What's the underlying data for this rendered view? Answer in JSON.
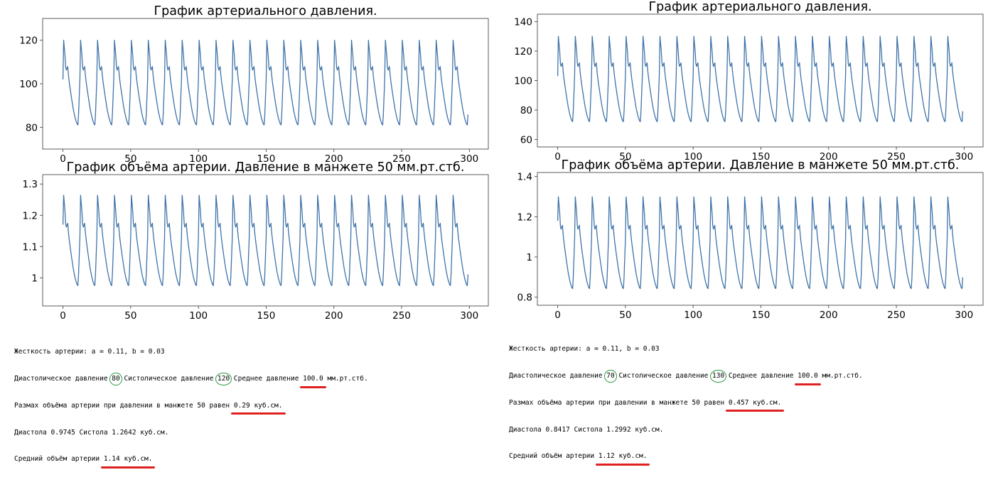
{
  "panels": [
    {
      "id": "left",
      "charts": [
        {
          "title": "График артериального давления.",
          "ylim": [
            70,
            130
          ],
          "yticks": [
            80,
            100,
            120
          ],
          "xlim": [
            -15,
            314
          ],
          "xticks": [
            0,
            50,
            100,
            150,
            200,
            250,
            300
          ],
          "diastolic": 81,
          "systolic": 120,
          "start": 102
        },
        {
          "title": "График объёма артерии. Давление в манжете 50 мм.рт.стб.",
          "ylim": [
            0.91,
            1.33
          ],
          "yticks": [
            1.0,
            1.1,
            1.2,
            1.3
          ],
          "xlim": [
            -15,
            314
          ],
          "xticks": [
            0,
            50,
            100,
            150,
            200,
            250,
            300
          ],
          "diastolic": 0.9745,
          "systolic": 1.2642,
          "start": 1.17
        }
      ],
      "console": {
        "line1": "Жесткость артерии: a = 0.11, b = 0.03",
        "line2": {
          "pre": "Диастолическое давление ",
          "dia": "80",
          "mid": " Систолическое давление ",
          "sys": "120",
          "mid2": " Среднее давление ",
          "mean": "100.0",
          "post": " мм.рт.стб."
        },
        "line3": {
          "pre": "Размах объёма артерии при давлении в манжете 50 равен ",
          "val": "0.29 куб.см."
        },
        "line4": "Диастола 0.9745 Систола 1.2642 куб.см.",
        "line5": {
          "pre": "Средний объём артерии ",
          "val": "1.14 куб.см."
        }
      }
    },
    {
      "id": "right",
      "charts": [
        {
          "title": "График артериального давления.",
          "ylim": [
            55,
            145
          ],
          "yticks": [
            60,
            80,
            100,
            120,
            140
          ],
          "xlim": [
            -15,
            314
          ],
          "xticks": [
            0,
            50,
            100,
            150,
            200,
            250,
            300
          ],
          "diastolic": 72,
          "systolic": 130,
          "start": 103
        },
        {
          "title": "График объёма артерии. Давление в манжете 50 мм.рт.стб.",
          "ylim": [
            0.76,
            1.42
          ],
          "yticks": [
            0.8,
            1.0,
            1.2,
            1.4
          ],
          "xlim": [
            -15,
            314
          ],
          "xticks": [
            0,
            50,
            100,
            150,
            200,
            250,
            300
          ],
          "diastolic": 0.8417,
          "systolic": 1.2992,
          "start": 1.18
        }
      ],
      "console": {
        "line1": "Жесткость артерии: a = 0.11, b = 0.03",
        "line2": {
          "pre": "Диастолическое давление ",
          "dia": "70",
          "mid": " Систолическое давление ",
          "sys": "130",
          "mid2": " Среднее давление ",
          "mean": "100.0",
          "post": " мм.рт.стб."
        },
        "line3": {
          "pre": "Размах объёма артерии при давлении в манжете 50 равен ",
          "val": "0.457 куб.см."
        },
        "line4": "Диастола 0.8417 Систола 1.2992 куб.см.",
        "line5": {
          "pre": "Средний объём артерии ",
          "val": "1.12 куб.см."
        }
      }
    }
  ],
  "chart_data": [
    {
      "type": "line",
      "title": "График артериального давления.",
      "x": [
        0,
        299
      ],
      "xlim": [
        -15,
        314
      ],
      "ylim": [
        70,
        130
      ],
      "series": [
        {
          "period": 12.5,
          "min": 81,
          "max": 120,
          "first": 102,
          "last": 81
        }
      ],
      "line_color": "#3f73a8"
    },
    {
      "type": "line",
      "title": "График объёма артерии. Давление в манжете 50 мм.рт.стб.",
      "x": [
        0,
        299
      ],
      "xlim": [
        -15,
        314
      ],
      "ylim": [
        0.91,
        1.33
      ],
      "series": [
        {
          "period": 12.5,
          "min": 0.9745,
          "max": 1.2642,
          "first": 1.17,
          "last": 0.975
        }
      ],
      "line_color": "#3f73a8"
    },
    {
      "type": "line",
      "title": "График артериального давления.",
      "x": [
        0,
        299
      ],
      "xlim": [
        -15,
        314
      ],
      "ylim": [
        55,
        145
      ],
      "series": [
        {
          "period": 12.5,
          "min": 72,
          "max": 130,
          "first": 103,
          "last": 72
        }
      ],
      "line_color": "#3f73a8"
    },
    {
      "type": "line",
      "title": "График объёма артерии. Давление в манжете 50 мм.рт.стб.",
      "x": [
        0,
        299
      ],
      "xlim": [
        -15,
        314
      ],
      "ylim": [
        0.76,
        1.42
      ],
      "series": [
        {
          "period": 12.5,
          "min": 0.8417,
          "max": 1.2992,
          "first": 1.18,
          "last": 0.84
        }
      ],
      "line_color": "#3f73a8"
    }
  ]
}
